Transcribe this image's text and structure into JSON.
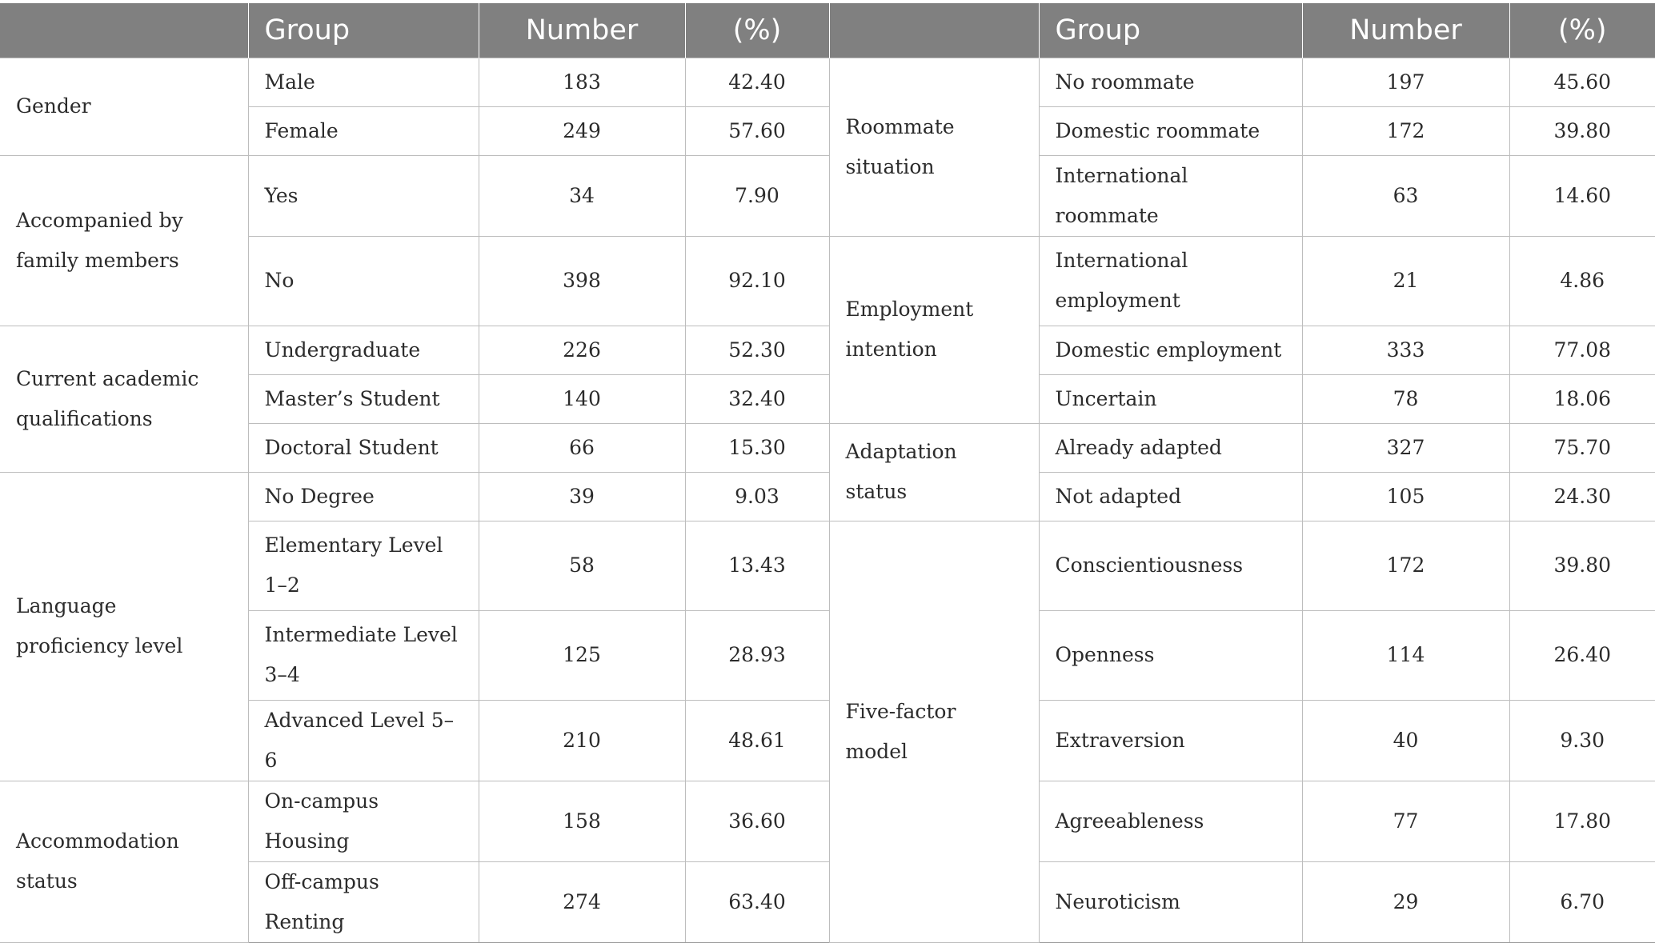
{
  "header": {
    "left": {
      "empty": "",
      "group": "Group",
      "number": "Number",
      "percent": "(%)"
    },
    "right": {
      "empty": "",
      "group": "Group",
      "number": "Number",
      "percent": "(%)"
    }
  },
  "left": {
    "gender": {
      "label": "Gender",
      "rows": [
        {
          "group": "Male",
          "number": "183",
          "percent": "42.40"
        },
        {
          "group": "Female",
          "number": "249",
          "percent": "57.60"
        }
      ]
    },
    "family": {
      "label": "Accompanied by family members",
      "rows": [
        {
          "group": "Yes",
          "number": "34",
          "percent": "7.90"
        },
        {
          "group": "No",
          "number": "398",
          "percent": "92.10"
        }
      ]
    },
    "academic": {
      "label": "Current academic qualifications",
      "rows": [
        {
          "group": "Undergraduate",
          "number": "226",
          "percent": "52.30"
        },
        {
          "group": "Master’s Student",
          "number": "140",
          "percent": "32.40"
        },
        {
          "group": "Doctoral Student",
          "number": "66",
          "percent": "15.30"
        }
      ]
    },
    "language": {
      "label": "Language proficiency level",
      "rows": [
        {
          "group": "No Degree",
          "number": "39",
          "percent": "9.03"
        },
        {
          "group": "Elementary Level 1–2",
          "number": "58",
          "percent": "13.43"
        },
        {
          "group": "Intermediate Level 3–4",
          "number": "125",
          "percent": "28.93"
        },
        {
          "group": "Advanced Level 5–6",
          "number": "210",
          "percent": "48.61"
        }
      ]
    },
    "accommodation": {
      "label": "Accommodation status",
      "rows": [
        {
          "group": "On-campus Housing",
          "number": "158",
          "percent": "36.60"
        },
        {
          "group": "Off-campus Renting",
          "number": "274",
          "percent": "63.40"
        }
      ]
    }
  },
  "right": {
    "roommate": {
      "label": "Roommate situation",
      "rows": [
        {
          "group": "No roommate",
          "number": "197",
          "percent": "45.60"
        },
        {
          "group": "Domestic roommate",
          "number": "172",
          "percent": "39.80"
        },
        {
          "group": "International roommate",
          "number": "63",
          "percent": "14.60"
        }
      ]
    },
    "employment": {
      "label": "Employment intention",
      "rows": [
        {
          "group": "International employment",
          "number": "21",
          "percent": "4.86"
        },
        {
          "group": "Domestic employment",
          "number": "333",
          "percent": "77.08"
        },
        {
          "group": "Uncertain",
          "number": "78",
          "percent": "18.06"
        }
      ]
    },
    "adaptation": {
      "label": "Adaptation status",
      "rows": [
        {
          "group": "Already adapted",
          "number": "327",
          "percent": "75.70"
        },
        {
          "group": "Not adapted",
          "number": "105",
          "percent": "24.30"
        }
      ]
    },
    "fivefactor": {
      "label": "Five-factor model",
      "rows": [
        {
          "group": "Conscientiousness",
          "number": "172",
          "percent": "39.80"
        },
        {
          "group": "Openness",
          "number": "114",
          "percent": "26.40"
        },
        {
          "group": "Extraversion",
          "number": "40",
          "percent": "9.30"
        },
        {
          "group": "Agreeableness",
          "number": "77",
          "percent": "17.80"
        },
        {
          "group": "Neuroticism",
          "number": "29",
          "percent": "6.70"
        }
      ]
    }
  },
  "colors": {
    "header_bg": "#808080",
    "header_text": "#ffffff",
    "body_text": "#2b2b2b",
    "grid": "#bdbdbd"
  }
}
